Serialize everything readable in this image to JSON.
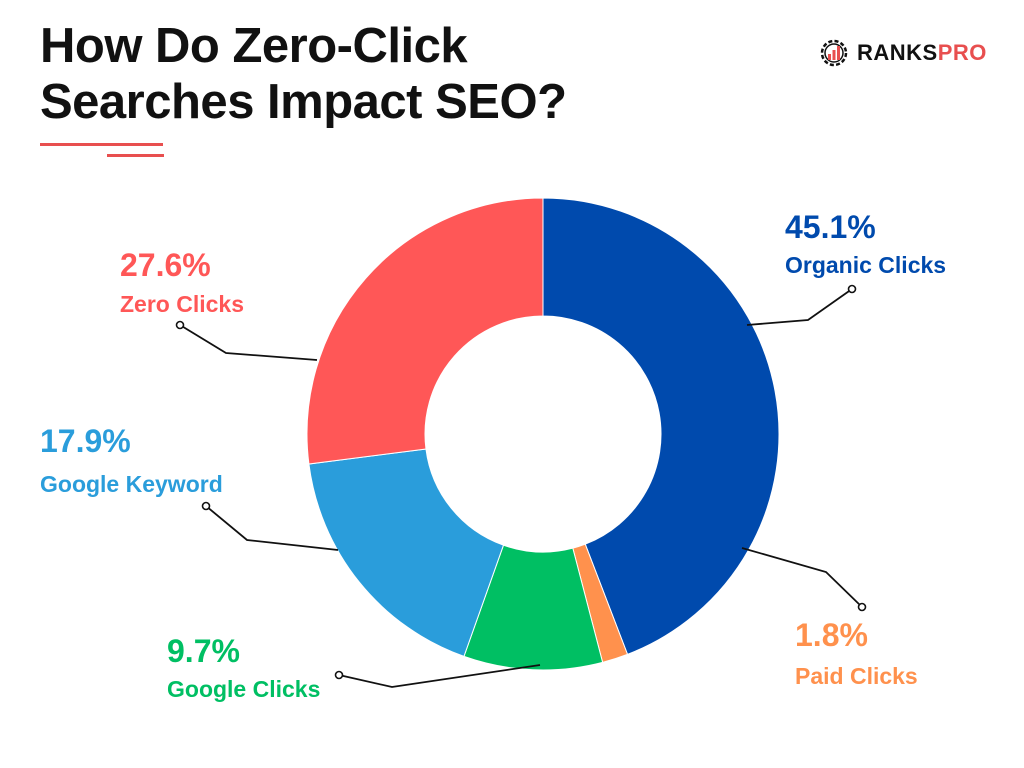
{
  "header": {
    "title_line1": "How Do Zero-Click",
    "title_line2": "Searches Impact SEO?"
  },
  "brand": {
    "name_part1": "RANKS",
    "name_part2": "PRO",
    "icon": "gear-chart-icon",
    "colors": {
      "dark": "#111111",
      "accent": "#e84f4f"
    }
  },
  "chart_data": {
    "type": "pie",
    "style": "donut",
    "title": "How Do Zero-Click Searches Impact SEO?",
    "start_angle_deg": 0,
    "direction": "clockwise",
    "slices": [
      {
        "label": "Organic Clicks",
        "value": 45.1,
        "pct_label": "45.1%",
        "color": "#004aad"
      },
      {
        "label": "Paid Clicks",
        "value": 1.8,
        "pct_label": "1.8%",
        "color": "#ff914d"
      },
      {
        "label": "Google Clicks",
        "value": 9.7,
        "pct_label": "9.7%",
        "color": "#00bf63"
      },
      {
        "label": "Google Keyword",
        "value": 17.9,
        "pct_label": "17.9%",
        "color": "#2a9ddb"
      },
      {
        "label": "Zero Clicks",
        "value": 27.6,
        "pct_label": "27.6%",
        "color": "#ff5757"
      }
    ]
  }
}
